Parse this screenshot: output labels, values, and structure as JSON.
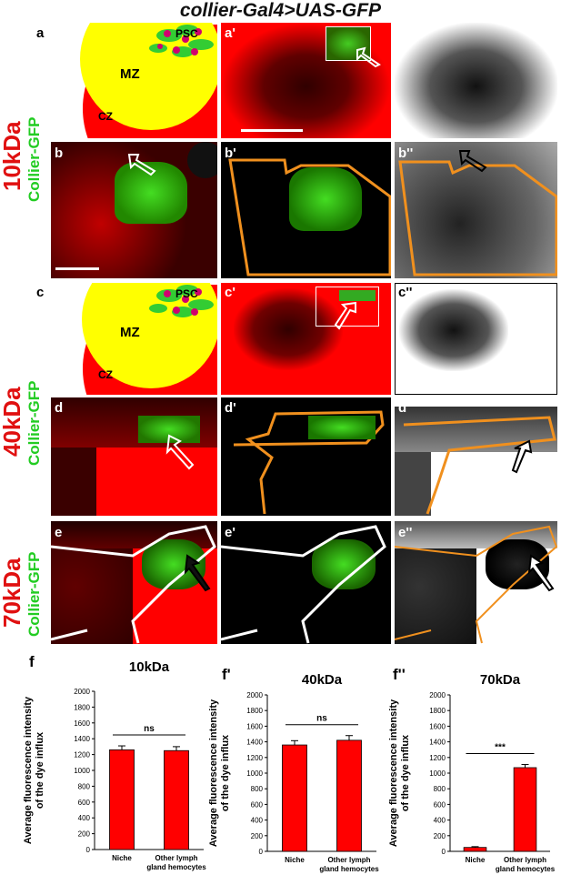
{
  "figure": {
    "title": "collier-Gal4>UAS-GFP",
    "rows": [
      {
        "kda": "10kDa",
        "gfp": "Collier-GFP"
      },
      {
        "kda": "40kDa",
        "gfp": "Collier-GFP"
      },
      {
        "kda": "70kDa",
        "gfp": "Collier-GFP"
      }
    ],
    "panels": {
      "a": "a",
      "a1": "a'",
      "a2": "a''",
      "b": "b",
      "b1": "b'",
      "b2": "b''",
      "c": "c",
      "c1": "c'",
      "c2": "c''",
      "d": "d",
      "d1": "d'",
      "d2": "d''",
      "e": "e",
      "e1": "e'",
      "e2": "e''",
      "f": "f",
      "f1": "f'",
      "f2": "f''"
    },
    "diagram": {
      "mz": "MZ",
      "cz": "CZ",
      "psc": "PSC"
    },
    "colors": {
      "red": "#ff0000",
      "yellow": "#ffff00",
      "green": "#33cc33",
      "magenta": "#d0006f",
      "orange": "#f0901e"
    }
  },
  "chart_data": [
    {
      "type": "bar",
      "title": "10kDa",
      "ylabel": "Average fluorescence intensity of the dye influx",
      "ylabel_lines": [
        "Average fluorescence intensity",
        "of the dye influx"
      ],
      "categories": [
        "Niche",
        "Other lymph gland hemocytes"
      ],
      "category_lines": [
        [
          "Niche"
        ],
        [
          "Other lymph",
          "gland hemocytes"
        ]
      ],
      "values": [
        1260,
        1250
      ],
      "errors": [
        50,
        50
      ],
      "ylim": [
        0,
        2000
      ],
      "ticks": [
        "0",
        "200",
        "400",
        "600",
        "800",
        "1000",
        "1200",
        "1400",
        "1600",
        "1800",
        "2000"
      ],
      "significance": "ns",
      "bar_color": "#ff0000"
    },
    {
      "type": "bar",
      "title": "40kDa",
      "ylabel": "Average fluorescence intensity of the dye influx",
      "ylabel_lines": [
        "Average fluorescence intensity",
        "of the dye influx"
      ],
      "categories": [
        "Niche",
        "Other lymph gland hemocytes"
      ],
      "category_lines": [
        [
          "Niche"
        ],
        [
          "Other lymph",
          "gland hemocytes"
        ]
      ],
      "values": [
        1360,
        1420
      ],
      "errors": [
        55,
        60
      ],
      "ylim": [
        0,
        2000
      ],
      "ticks": [
        "0",
        "200",
        "400",
        "600",
        "800",
        "1000",
        "1200",
        "1400",
        "1600",
        "1800",
        "2000"
      ],
      "significance": "ns",
      "bar_color": "#ff0000"
    },
    {
      "type": "bar",
      "title": "70kDa",
      "ylabel": "Average fluorescence intensity of the dye influx",
      "ylabel_lines": [
        "Average fluorescence intensity",
        "of the dye influx"
      ],
      "categories": [
        "Niche",
        "Other lymph gland hemocytes"
      ],
      "category_lines": [
        [
          "Niche"
        ],
        [
          "Other lymph",
          "gland hemocytes"
        ]
      ],
      "values": [
        50,
        1070
      ],
      "errors": [
        10,
        40
      ],
      "ylim": [
        0,
        2000
      ],
      "ticks": [
        "0",
        "200",
        "400",
        "600",
        "800",
        "1000",
        "1200",
        "1400",
        "1600",
        "1800",
        "2000"
      ],
      "significance": "***",
      "bar_color": "#ff0000"
    }
  ]
}
